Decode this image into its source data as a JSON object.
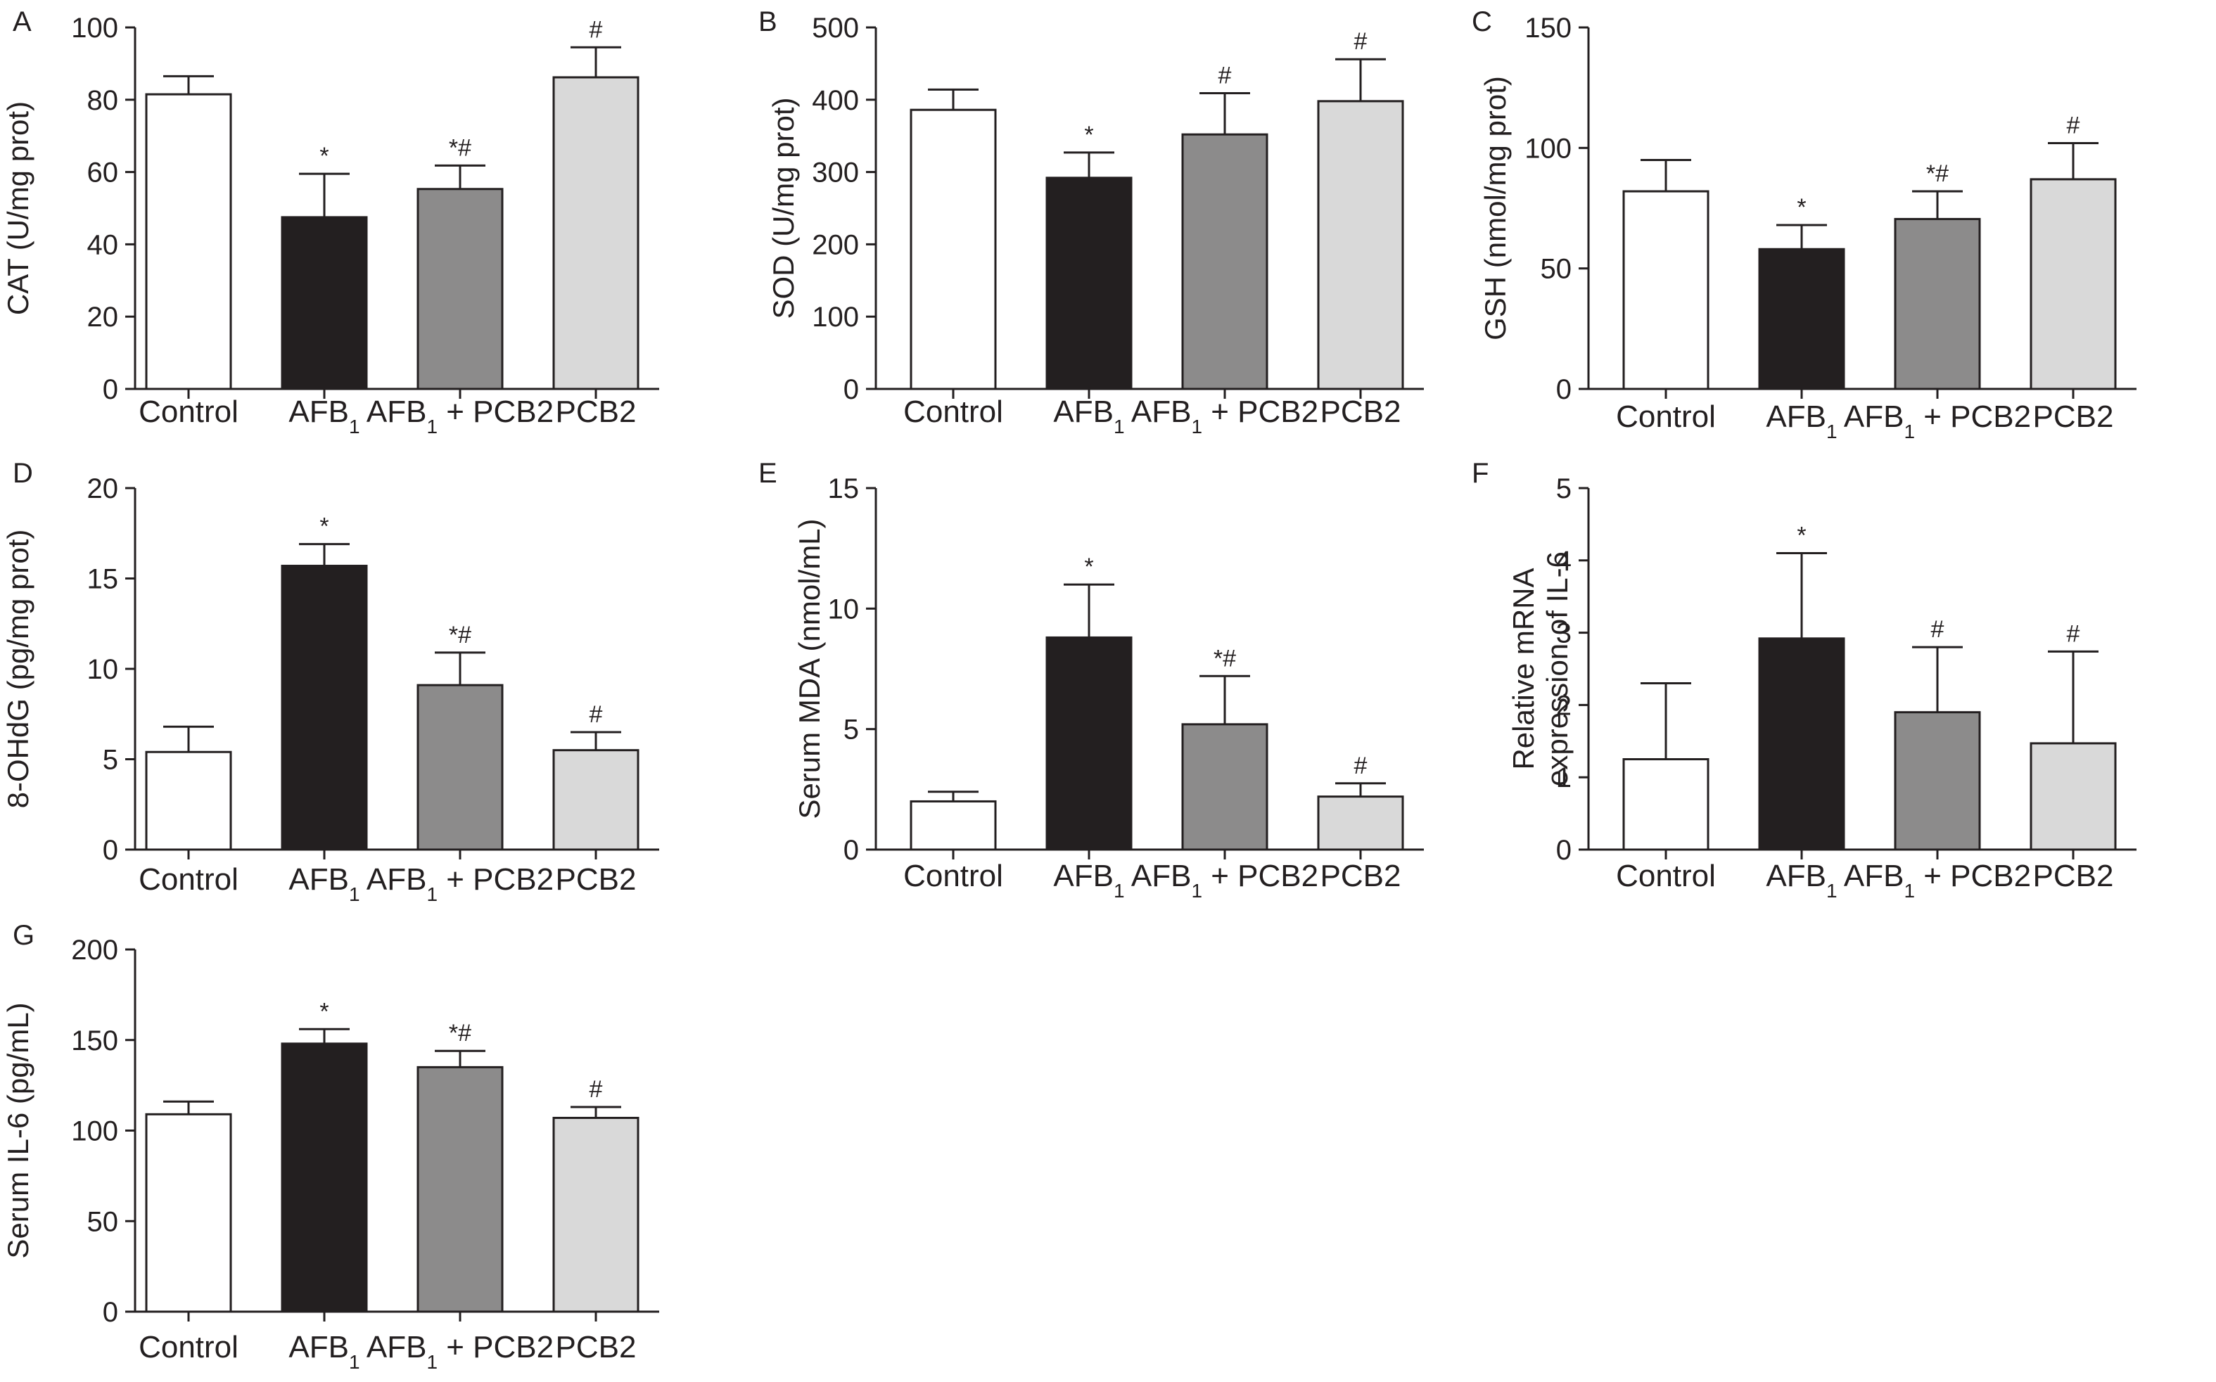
{
  "chart_data": [
    {
      "panel": "A",
      "type": "bar",
      "categories": [
        "Control",
        "AFB1",
        "AFB1 + PCB2",
        "PCB2"
      ],
      "ylabel": "CAT (U/mg prot)",
      "ylim": [
        0,
        100
      ],
      "yticks": [
        0,
        20,
        40,
        60,
        80,
        100
      ],
      "values": [
        81.5,
        47.5,
        55.3,
        86.2
      ],
      "errors": [
        5.0,
        12.0,
        6.5,
        8.3
      ],
      "annotations": [
        "",
        "*",
        "*#",
        "#"
      ],
      "colors": [
        "#ffffff",
        "#231f20",
        "#8c8b8b",
        "#d9d9d9"
      ]
    },
    {
      "panel": "B",
      "type": "bar",
      "categories": [
        "Control",
        "AFB1",
        "AFB1 + PCB2",
        "PCB2"
      ],
      "ylabel": "SOD (U/mg prot)",
      "ylim": [
        0,
        500
      ],
      "yticks": [
        0,
        100,
        200,
        300,
        400,
        500
      ],
      "values": [
        386,
        292,
        352,
        398
      ],
      "errors": [
        28,
        35,
        57,
        58
      ],
      "annotations": [
        "",
        "*",
        "#",
        "#"
      ],
      "colors": [
        "#ffffff",
        "#231f20",
        "#8c8b8b",
        "#d9d9d9"
      ]
    },
    {
      "panel": "C",
      "type": "bar",
      "categories": [
        "Control",
        "AFB1",
        "AFB1 + PCB2",
        "PCB2"
      ],
      "ylabel": "GSH (nmol/mg prot)",
      "ylim": [
        0,
        150
      ],
      "yticks": [
        0,
        50,
        100,
        150
      ],
      "values": [
        82,
        58,
        70.5,
        87
      ],
      "errors": [
        13,
        10,
        11.5,
        15
      ],
      "annotations": [
        "",
        "*",
        "*#",
        "#"
      ],
      "colors": [
        "#ffffff",
        "#231f20",
        "#8c8b8b",
        "#d9d9d9"
      ]
    },
    {
      "panel": "D",
      "type": "bar",
      "categories": [
        "Control",
        "AFB1",
        "AFB1 + PCB2",
        "PCB2"
      ],
      "ylabel": "8-OHdG (pg/mg prot)",
      "ylim": [
        0,
        20
      ],
      "yticks": [
        0,
        5,
        10,
        15,
        20
      ],
      "values": [
        5.4,
        15.7,
        9.1,
        5.5
      ],
      "errors": [
        1.4,
        1.2,
        1.8,
        1.0
      ],
      "annotations": [
        "",
        "*",
        "*#",
        "#"
      ],
      "colors": [
        "#ffffff",
        "#231f20",
        "#8c8b8b",
        "#d9d9d9"
      ]
    },
    {
      "panel": "E",
      "type": "bar",
      "categories": [
        "Control",
        "AFB1",
        "AFB1 + PCB2",
        "PCB2"
      ],
      "ylabel": "Serum MDA (nmol/mL)",
      "ylim": [
        0,
        15
      ],
      "yticks": [
        0,
        5,
        10,
        15
      ],
      "values": [
        2.0,
        8.8,
        5.2,
        2.2
      ],
      "errors": [
        0.4,
        2.2,
        2.0,
        0.55
      ],
      "annotations": [
        "",
        "*",
        "*#",
        "#"
      ],
      "colors": [
        "#ffffff",
        "#231f20",
        "#8c8b8b",
        "#d9d9d9"
      ]
    },
    {
      "panel": "F",
      "type": "bar",
      "categories": [
        "Control",
        "AFB1",
        "AFB1 + PCB2",
        "PCB2"
      ],
      "ylabel": [
        "Relative mRNA",
        "expression of IL-6"
      ],
      "ylim": [
        0,
        5
      ],
      "yticks": [
        0,
        1,
        2,
        3,
        4,
        5
      ],
      "values": [
        1.25,
        2.92,
        1.9,
        1.47
      ],
      "errors": [
        1.05,
        1.18,
        0.9,
        1.27
      ],
      "annotations": [
        "",
        "*",
        "#",
        "#"
      ],
      "colors": [
        "#ffffff",
        "#231f20",
        "#8c8b8b",
        "#d9d9d9"
      ]
    },
    {
      "panel": "G",
      "type": "bar",
      "categories": [
        "Control",
        "AFB1",
        "AFB1 + PCB2",
        "PCB2"
      ],
      "ylabel": "Serum IL-6 (pg/mL)",
      "ylim": [
        0,
        200
      ],
      "yticks": [
        0,
        50,
        100,
        150,
        200
      ],
      "values": [
        109,
        148,
        135,
        107
      ],
      "errors": [
        7,
        8,
        9,
        6
      ],
      "annotations": [
        "",
        "*",
        "*#",
        "#"
      ],
      "colors": [
        "#ffffff",
        "#231f20",
        "#8c8b8b",
        "#d9d9d9"
      ]
    }
  ]
}
